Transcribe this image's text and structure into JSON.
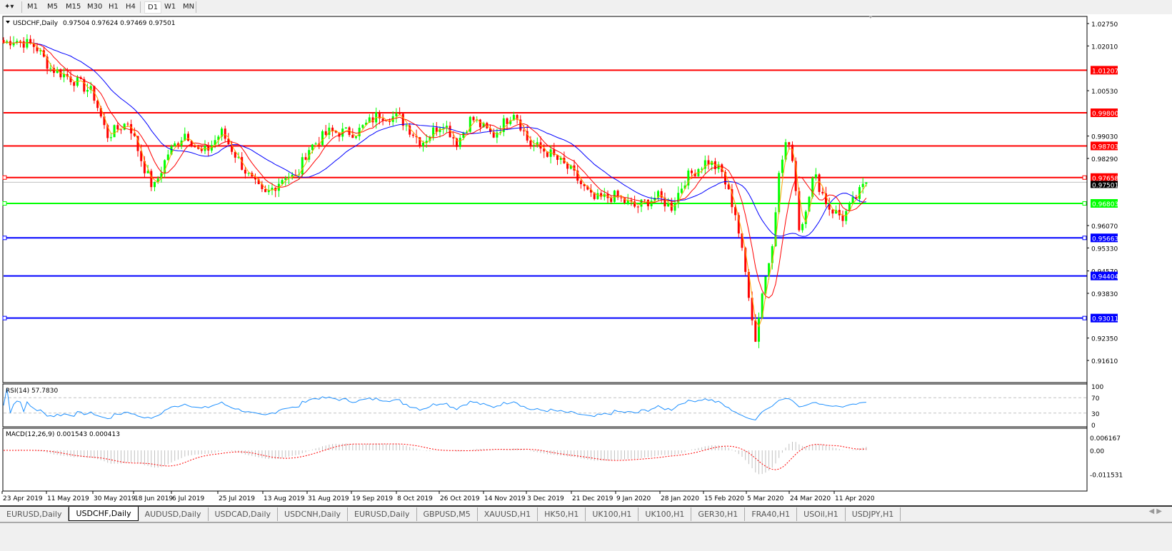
{
  "toolbar": {
    "timeframes": [
      "M1",
      "M5",
      "M15",
      "M30",
      "H1",
      "H4",
      "D1",
      "W1",
      "MN"
    ],
    "active": "D1"
  },
  "header": {
    "symbol_label": "USDCHF,Daily",
    "ohlc": "0.97504 0.97624 0.97469 0.97501"
  },
  "rsi_label": "RSI(14) 57.7830",
  "macd_label": "MACD(12,26,9) 0.001543 0.000413",
  "colors": {
    "bull": "#00ff00",
    "bear": "#ff0000",
    "ma_fast": "#ff0000",
    "ma_slow": "#0000ff",
    "ma_short": "#ffa500",
    "rsi": "#1e90ff",
    "macd_signal": "#ff0000",
    "macd_hist": "#c0c0c0"
  },
  "chart_data": {
    "type": "candlestick",
    "symbol": "USDCHF",
    "timeframe": "Daily",
    "ylim": [
      0.9161,
      1.0275
    ],
    "price_ticks": [
      "1.02750",
      "1.02010",
      "1.00530",
      "0.99030",
      "0.98290",
      "0.96070",
      "0.95330",
      "0.94570",
      "0.93830",
      "0.92350",
      "0.91610"
    ],
    "date_labels": [
      "23 Apr 2019",
      "11 May 2019",
      "30 May 2019",
      "18 Jun 2019",
      "6 Jul 2019",
      "25 Jul 2019",
      "13 Aug 2019",
      "31 Aug 2019",
      "19 Sep 2019",
      "8 Oct 2019",
      "26 Oct 2019",
      "14 Nov 2019",
      "3 Dec 2019",
      "21 Dec 2019",
      "9 Jan 2020",
      "28 Jan 2020",
      "15 Feb 2020",
      "5 Mar 2020",
      "24 Mar 2020",
      "11 Apr 2020"
    ],
    "approx_closes": [
      1.0211,
      1.0223,
      1.0199,
      1.0129,
      1.0093,
      1.0046,
      0.9904,
      0.9951,
      0.981,
      0.9727,
      0.9845,
      0.9916,
      0.9845,
      0.9857,
      0.9916,
      0.9763,
      0.9704,
      0.9775,
      0.9763,
      0.9857,
      0.9916,
      0.9916,
      0.9975,
      0.9963,
      0.9881,
      0.9951,
      0.9881,
      0.9963,
      0.9904,
      0.9987,
      0.9881,
      0.9845,
      0.9786,
      0.9692,
      0.9704,
      0.9668,
      0.9704,
      0.9668,
      0.9763,
      0.9822,
      0.9786,
      0.9645,
      0.9362,
      0.922,
      0.9362,
      0.9527,
      0.9763,
      0.9881,
      0.9834,
      0.9574,
      0.9692,
      0.9775,
      0.9668,
      0.9633,
      0.9704,
      0.975
    ],
    "last_price": "0.97501",
    "levels": [
      {
        "price": "1.01207",
        "color": "#ff0000"
      },
      {
        "price": "0.99800",
        "color": "#ff0000"
      },
      {
        "price": "0.98703",
        "color": "#ff0000"
      },
      {
        "price": "0.97658",
        "color": "#ff0000"
      },
      {
        "price": "0.96803",
        "color": "#00ff00"
      },
      {
        "price": "0.95663",
        "color": "#0000ff"
      },
      {
        "price": "0.94404",
        "color": "#0000ff"
      },
      {
        "price": "0.93011",
        "color": "#0000ff"
      }
    ],
    "rsi": {
      "period": 14,
      "value": 57.783,
      "levels": [
        "100",
        "70",
        "30",
        "0"
      ]
    },
    "macd": {
      "fast": 12,
      "slow": 26,
      "signal": 9,
      "main": 0.001543,
      "signal_value": 0.000413,
      "ticks": [
        "0.006167",
        "0.00",
        "-0.011531"
      ]
    }
  },
  "tabs": [
    "EURUSD,Daily",
    "USDCHF,Daily",
    "AUDUSD,Daily",
    "USDCAD,Daily",
    "USDCNH,Daily",
    "EURUSD,Daily",
    "GBPUSD,M5",
    "XAUUSD,H1",
    "HK50,H1",
    "UK100,H1",
    "UK100,H1",
    "GER30,H1",
    "FRA40,H1",
    "USOil,H1",
    "USDJPY,H1"
  ],
  "active_tab": 1
}
